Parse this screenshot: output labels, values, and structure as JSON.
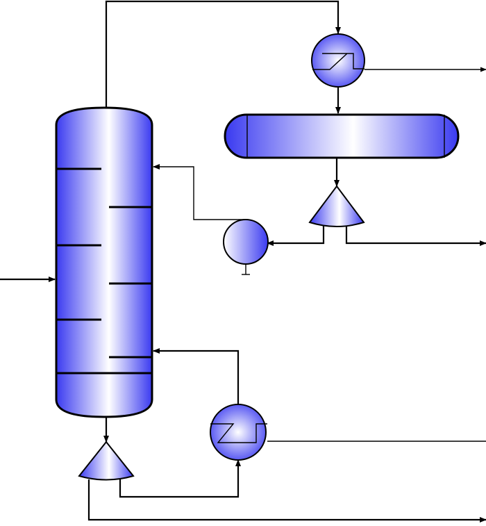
{
  "diagram": {
    "type": "process-flow-diagram",
    "colors": {
      "equipment_dark": "#3a3af0",
      "equipment_light": "#ffffff",
      "line": "#000000",
      "background": "#ffffff"
    },
    "equipment": [
      {
        "id": "distillation-column",
        "icon": "tray-column",
        "trays": 7
      },
      {
        "id": "overhead-condenser",
        "icon": "heat-exchanger"
      },
      {
        "id": "reflux-drum",
        "icon": "horizontal-vessel"
      },
      {
        "id": "reflux-pump",
        "icon": "centrifugal-pump"
      },
      {
        "id": "reflux-splitter",
        "icon": "splitter"
      },
      {
        "id": "reboiler",
        "icon": "heat-exchanger"
      },
      {
        "id": "bottoms-splitter",
        "icon": "splitter"
      }
    ],
    "streams": [
      {
        "id": "feed"
      },
      {
        "id": "overhead-vapor"
      },
      {
        "id": "condenser-outlet"
      },
      {
        "id": "utility-out-top"
      },
      {
        "id": "drum-outlet"
      },
      {
        "id": "reflux"
      },
      {
        "id": "distillate"
      },
      {
        "id": "column-bottoms"
      },
      {
        "id": "reboiler-feed"
      },
      {
        "id": "boilup"
      },
      {
        "id": "utility-out-bottom"
      },
      {
        "id": "bottoms-product"
      }
    ]
  }
}
